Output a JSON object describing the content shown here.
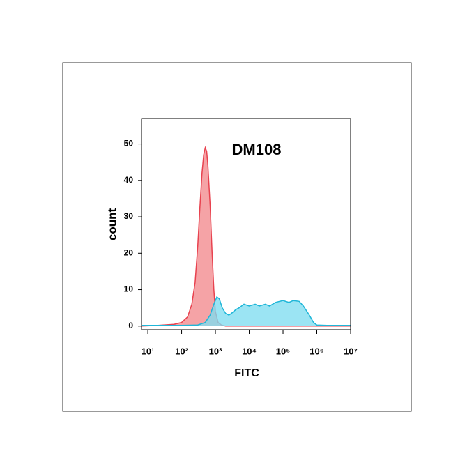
{
  "chart_data": {
    "type": "area",
    "annotation": "DM108",
    "y_label": "count",
    "x_label": "FITC",
    "xscale": "log",
    "xlim": [
      6.5,
      10000000
    ],
    "ylim": [
      -1,
      57
    ],
    "xticks": [
      {
        "value": 10,
        "label": "10¹"
      },
      {
        "value": 100,
        "label": "10²"
      },
      {
        "value": 1000,
        "label": "10³"
      },
      {
        "value": 10000,
        "label": "10⁴"
      },
      {
        "value": 100000,
        "label": "10⁵"
      },
      {
        "value": 1000000,
        "label": "10⁶"
      },
      {
        "value": 10000000,
        "label": "10⁷"
      }
    ],
    "yticks": [
      0,
      10,
      20,
      30,
      40,
      50
    ],
    "series": [
      {
        "color": "#e8424f",
        "fill": "#f5a3a6",
        "x": [
          6.5,
          20,
          60,
          100,
          150,
          200,
          250,
          300,
          350,
          400,
          450,
          500,
          550,
          600,
          700,
          800,
          900,
          1000,
          1200,
          1500,
          2000,
          10000000
        ],
        "values": [
          0,
          0.2,
          0.5,
          1,
          2.5,
          6,
          12,
          22,
          33,
          42,
          47,
          49,
          48,
          44,
          33,
          20,
          10,
          4,
          1,
          0.3,
          0,
          0
        ]
      },
      {
        "color": "#1fb6d8",
        "fill": "#7fdcf0",
        "x": [
          6.5,
          100,
          300,
          500,
          700,
          900,
          1100,
          1300,
          1600,
          2000,
          2500,
          3000,
          4000,
          5000,
          7000,
          10000,
          15000,
          20000,
          30000,
          40000,
          60000,
          100000,
          150000,
          200000,
          300000,
          400000,
          600000,
          800000,
          1000000,
          2000000,
          10000000
        ],
        "values": [
          0.2,
          0.2,
          0.3,
          1,
          3,
          6,
          8,
          7.5,
          5,
          3.5,
          3,
          3.5,
          4.5,
          5,
          6,
          5.5,
          6,
          5.5,
          6,
          5.5,
          6.5,
          7,
          6.5,
          7,
          6.8,
          5.5,
          3,
          1,
          0.3,
          0.2,
          0.2
        ]
      }
    ]
  }
}
